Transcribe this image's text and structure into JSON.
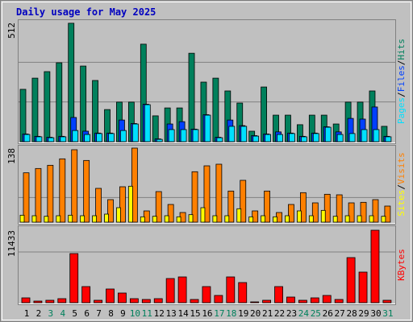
{
  "chart_data": [
    {
      "type": "bar",
      "title": "Daily usage for May 2025",
      "ylim": [
        0,
        512
      ],
      "yticks": [
        512
      ],
      "grid_values": [
        171,
        341
      ],
      "separator": "/",
      "series": [
        {
          "name": "Hits",
          "color": "#00805c",
          "values": [
            225,
            273,
            301,
            339,
            509,
            325,
            263,
            138,
            170,
            170,
            419,
            111,
            145,
            145,
            380,
            256,
            273,
            218,
            166,
            45,
            235,
            114,
            114,
            73,
            114,
            114,
            76,
            170,
            170,
            218,
            66
          ]
        },
        {
          "name": "Files",
          "color": "#0040ff",
          "values": [
            33,
            23,
            19,
            23,
            104,
            45,
            37,
            37,
            93,
            78,
            161,
            12,
            76,
            86,
            54,
            116,
            19,
            93,
            69,
            26,
            33,
            42,
            37,
            23,
            37,
            64,
            42,
            100,
            97,
            149,
            23
          ]
        },
        {
          "name": "Pages",
          "color": "#00e0ff",
          "values": [
            31,
            21,
            17,
            21,
            48,
            31,
            35,
            35,
            48,
            76,
            159,
            10,
            52,
            52,
            52,
            114,
            17,
            66,
            66,
            24,
            31,
            31,
            35,
            21,
            35,
            62,
            31,
            35,
            52,
            52,
            21
          ]
        }
      ]
    },
    {
      "type": "bar",
      "ylim": [
        0,
        138
      ],
      "yticks": [
        138
      ],
      "grid_values": [
        46
      ],
      "separator": "/",
      "series": [
        {
          "name": "Visits",
          "color": "#ff8000",
          "values": [
            92,
            100,
            106,
            118,
            135,
            115,
            63,
            42,
            66,
            138,
            21,
            57,
            33,
            18,
            94,
            105,
            108,
            58,
            78,
            21,
            58,
            18,
            33,
            55,
            36,
            52,
            51,
            36,
            37,
            42,
            30
          ]
        },
        {
          "name": "Sites",
          "color": "#ffff00",
          "values": [
            13,
            12,
            11,
            12,
            13,
            12,
            12,
            15,
            27,
            67,
            10,
            11,
            12,
            10,
            14,
            27,
            12,
            12,
            25,
            10,
            12,
            10,
            12,
            21,
            12,
            22,
            11,
            12,
            12,
            12,
            11
          ]
        }
      ]
    },
    {
      "type": "bar",
      "ylim": [
        0,
        11433
      ],
      "yticks": [
        11433
      ],
      "grid_values": [
        8003
      ],
      "categories": [
        "1",
        "2",
        "3",
        "4",
        "5",
        "6",
        "7",
        "8",
        "9",
        "10",
        "11",
        "12",
        "13",
        "14",
        "15",
        "16",
        "17",
        "18",
        "19",
        "20",
        "21",
        "22",
        "23",
        "24",
        "25",
        "26",
        "27",
        "28",
        "29",
        "30",
        "31"
      ],
      "category_colors": [
        "#000000",
        "#000000",
        "#00805c",
        "#00805c",
        "#000000",
        "#000000",
        "#000000",
        "#000000",
        "#000000",
        "#00805c",
        "#00805c",
        "#000000",
        "#000000",
        "#000000",
        "#000000",
        "#000000",
        "#00805c",
        "#00805c",
        "#000000",
        "#000000",
        "#000000",
        "#000000",
        "#000000",
        "#00805c",
        "#00805c",
        "#000000",
        "#000000",
        "#000000",
        "#000000",
        "#000000",
        "#00805c"
      ],
      "series": [
        {
          "name": "KBytes",
          "color": "#ff0000",
          "values": [
            762,
            254,
            381,
            635,
            7749,
            2541,
            381,
            2160,
            1524,
            635,
            508,
            635,
            3811,
            4065,
            508,
            2541,
            1143,
            4065,
            3176,
            127,
            381,
            2541,
            889,
            381,
            762,
            1143,
            508,
            7114,
            4828,
            11433,
            381
          ]
        }
      ]
    }
  ]
}
